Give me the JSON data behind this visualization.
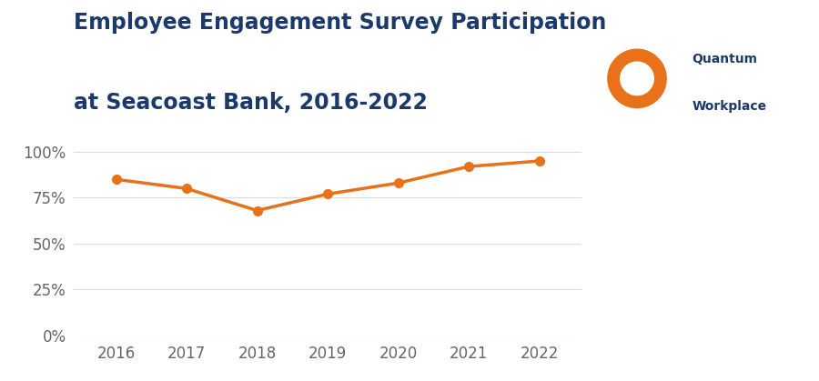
{
  "title_line1": "Employee Engagement Survey Participation",
  "title_line2": "at Seacoast Bank, 2016-2022",
  "years": [
    2016,
    2017,
    2018,
    2019,
    2020,
    2021,
    2022
  ],
  "values": [
    0.85,
    0.8,
    0.68,
    0.77,
    0.83,
    0.92,
    0.95
  ],
  "line_color": "#E8711A",
  "marker_color": "#E8711A",
  "title_color": "#1B3A6B",
  "axis_label_color": "#666666",
  "grid_color": "#DDDDDD",
  "background_color": "#FFFFFF",
  "yticks": [
    0.0,
    0.25,
    0.5,
    0.75,
    1.0
  ],
  "ytick_labels": [
    "0%",
    "25%",
    "50%",
    "75%",
    "100%"
  ],
  "ylim": [
    0,
    1.08
  ],
  "xlim": [
    2015.4,
    2022.6
  ],
  "title_fontsize": 17,
  "tick_fontsize": 12,
  "line_width": 2.5,
  "marker_size": 7,
  "logo_text1": "Quantum",
  "logo_text2": "Workplace",
  "logo_color": "#1B3A6B",
  "logo_circle_color": "#E8711A"
}
